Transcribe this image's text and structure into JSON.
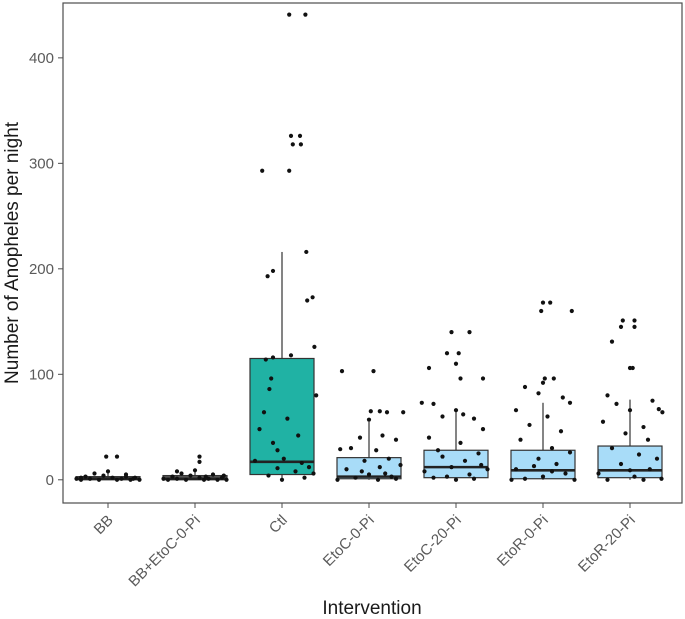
{
  "chart_data": {
    "type": "box",
    "title": "",
    "xlabel": "Intervention",
    "ylabel": "Number of Anopheles per night",
    "ylim": [
      -22,
      452
    ],
    "yticks": [
      0,
      100,
      200,
      300,
      400
    ],
    "grid": false,
    "legend": "none",
    "categories": [
      "BB",
      "BB+EtoC-0-Pi",
      "Ctl",
      "EtoC-0-Pi",
      "EtoC-20-Pi",
      "EtoR-0-Pi",
      "EtoR-20-Pi"
    ],
    "fill_colors": [
      "#595959",
      "#595959",
      "#20b2a4",
      "#a8dcf8",
      "#a8dcf8",
      "#a8dcf8",
      "#a8dcf8"
    ],
    "boxes": [
      {
        "q1": 0,
        "median": 1,
        "q3": 3,
        "whisker_low": 0,
        "whisker_high": 8
      },
      {
        "q1": 0,
        "median": 1,
        "q3": 4,
        "whisker_low": 0,
        "whisker_high": 10
      },
      {
        "q1": 5,
        "median": 17,
        "q3": 115,
        "whisker_low": 0,
        "whisker_high": 216
      },
      {
        "q1": 1,
        "median": 3,
        "q3": 21,
        "whisker_low": 0,
        "whisker_high": 55
      },
      {
        "q1": 2,
        "median": 12,
        "q3": 28,
        "whisker_low": 0,
        "whisker_high": 65
      },
      {
        "q1": 1,
        "median": 9,
        "q3": 28,
        "whisker_low": 0,
        "whisker_high": 73
      },
      {
        "q1": 2,
        "median": 9,
        "q3": 32,
        "whisker_low": 0,
        "whisker_high": 76
      }
    ],
    "points": [
      [
        [
          -0.3,
          0
        ],
        [
          -0.2,
          1
        ],
        [
          -0.1,
          0
        ],
        [
          0.05,
          2
        ],
        [
          0.15,
          1
        ],
        [
          0.25,
          0
        ],
        [
          -0.25,
          3
        ],
        [
          -0.05,
          4
        ],
        [
          0.1,
          0
        ],
        [
          0.3,
          2
        ],
        [
          -0.15,
          6
        ],
        [
          0.2,
          5
        ],
        [
          0.0,
          8
        ],
        [
          -0.3,
          2
        ],
        [
          0.28,
          1
        ],
        [
          -0.02,
          22
        ],
        [
          0.1,
          22
        ],
        [
          0.35,
          0
        ],
        [
          -0.35,
          1
        ],
        [
          0.2,
          3
        ]
      ],
      [
        [
          -0.3,
          0
        ],
        [
          -0.2,
          1
        ],
        [
          -0.1,
          0
        ],
        [
          0.05,
          2
        ],
        [
          0.15,
          1
        ],
        [
          0.25,
          0
        ],
        [
          -0.25,
          3
        ],
        [
          -0.05,
          4
        ],
        [
          0.1,
          0
        ],
        [
          0.3,
          2
        ],
        [
          -0.15,
          6
        ],
        [
          0.2,
          5
        ],
        [
          0.0,
          9
        ],
        [
          0.05,
          22
        ],
        [
          -0.2,
          8
        ],
        [
          0.32,
          4
        ],
        [
          0.05,
          17
        ],
        [
          -0.35,
          1
        ],
        [
          0.35,
          0
        ],
        [
          0.12,
          3
        ]
      ],
      [
        [
          0.08,
          441
        ],
        [
          0.26,
          441
        ],
        [
          0.1,
          326
        ],
        [
          0.2,
          326
        ],
        [
          0.12,
          318
        ],
        [
          0.21,
          318
        ],
        [
          -0.22,
          293
        ],
        [
          0.08,
          293
        ],
        [
          -0.1,
          198
        ],
        [
          -0.16,
          193
        ],
        [
          0.27,
          216
        ],
        [
          0.34,
          173
        ],
        [
          0.28,
          170
        ],
        [
          0.36,
          126
        ],
        [
          -0.18,
          114
        ],
        [
          -0.1,
          116
        ],
        [
          0.1,
          118
        ],
        [
          -0.12,
          96
        ],
        [
          -0.14,
          86
        ],
        [
          0.38,
          80
        ],
        [
          -0.2,
          64
        ],
        [
          0.06,
          58
        ],
        [
          0.18,
          42
        ],
        [
          -0.25,
          48
        ],
        [
          -0.05,
          28
        ],
        [
          0.02,
          20
        ],
        [
          -0.3,
          18
        ],
        [
          0.3,
          12
        ],
        [
          0.15,
          8
        ],
        [
          -0.15,
          4
        ],
        [
          0.0,
          0
        ],
        [
          0.25,
          2
        ],
        [
          -0.05,
          11
        ],
        [
          0.35,
          6
        ],
        [
          0.22,
          16
        ],
        [
          -0.1,
          35
        ]
      ],
      [
        [
          -0.3,
          103
        ],
        [
          0.05,
          103
        ],
        [
          0.02,
          65
        ],
        [
          0.12,
          65
        ],
        [
          0.2,
          64
        ],
        [
          0.38,
          64
        ],
        [
          0.0,
          57
        ],
        [
          -0.1,
          40
        ],
        [
          0.15,
          42
        ],
        [
          0.3,
          38
        ],
        [
          -0.2,
          30
        ],
        [
          -0.32,
          29
        ],
        [
          0.08,
          28
        ],
        [
          -0.05,
          18
        ],
        [
          0.22,
          20
        ],
        [
          0.35,
          14
        ],
        [
          -0.25,
          10
        ],
        [
          0.0,
          5
        ],
        [
          0.18,
          6
        ],
        [
          -0.15,
          2
        ],
        [
          0.1,
          0
        ],
        [
          0.3,
          1
        ],
        [
          -0.35,
          0
        ],
        [
          0.25,
          3
        ],
        [
          -0.08,
          8
        ],
        [
          0.12,
          12
        ]
      ],
      [
        [
          -0.05,
          140
        ],
        [
          0.15,
          140
        ],
        [
          -0.1,
          120
        ],
        [
          0.03,
          120
        ],
        [
          0.0,
          110
        ],
        [
          -0.3,
          106
        ],
        [
          0.05,
          96
        ],
        [
          0.3,
          96
        ],
        [
          -0.38,
          73
        ],
        [
          -0.25,
          72
        ],
        [
          0.0,
          66
        ],
        [
          0.08,
          62
        ],
        [
          -0.15,
          60
        ],
        [
          0.2,
          58
        ],
        [
          0.3,
          48
        ],
        [
          -0.3,
          40
        ],
        [
          0.05,
          35
        ],
        [
          -0.2,
          28
        ],
        [
          0.25,
          25
        ],
        [
          0.1,
          18
        ],
        [
          -0.05,
          12
        ],
        [
          0.35,
          10
        ],
        [
          -0.35,
          8
        ],
        [
          0.15,
          5
        ],
        [
          -0.1,
          3
        ],
        [
          0.2,
          1
        ],
        [
          0.0,
          0
        ],
        [
          -0.25,
          2
        ],
        [
          0.28,
          14
        ],
        [
          -0.15,
          22
        ]
      ],
      [
        [
          0.0,
          168
        ],
        [
          0.08,
          168
        ],
        [
          -0.02,
          160
        ],
        [
          0.32,
          160
        ],
        [
          0.02,
          96
        ],
        [
          0.12,
          96
        ],
        [
          0.0,
          92
        ],
        [
          -0.2,
          88
        ],
        [
          -0.05,
          82
        ],
        [
          0.22,
          78
        ],
        [
          0.3,
          73
        ],
        [
          -0.3,
          66
        ],
        [
          0.05,
          60
        ],
        [
          -0.15,
          52
        ],
        [
          0.2,
          46
        ],
        [
          -0.25,
          38
        ],
        [
          0.1,
          30
        ],
        [
          0.3,
          26
        ],
        [
          -0.05,
          20
        ],
        [
          0.15,
          15
        ],
        [
          -0.3,
          10
        ],
        [
          0.25,
          6
        ],
        [
          0.0,
          3
        ],
        [
          -0.2,
          1
        ],
        [
          0.35,
          0
        ],
        [
          -0.35,
          0
        ],
        [
          0.1,
          8
        ],
        [
          -0.1,
          13
        ]
      ],
      [
        [
          -0.08,
          151
        ],
        [
          0.05,
          151
        ],
        [
          -0.1,
          145
        ],
        [
          0.05,
          145
        ],
        [
          -0.2,
          131
        ],
        [
          0.0,
          106
        ],
        [
          0.03,
          106
        ],
        [
          0.25,
          75
        ],
        [
          0.32,
          67
        ],
        [
          0.36,
          64
        ],
        [
          -0.25,
          80
        ],
        [
          -0.15,
          72
        ],
        [
          0.0,
          66
        ],
        [
          -0.3,
          55
        ],
        [
          0.15,
          50
        ],
        [
          -0.05,
          44
        ],
        [
          0.2,
          38
        ],
        [
          -0.2,
          30
        ],
        [
          0.1,
          24
        ],
        [
          0.3,
          20
        ],
        [
          -0.1,
          15
        ],
        [
          0.22,
          10
        ],
        [
          -0.35,
          6
        ],
        [
          0.05,
          3
        ],
        [
          0.35,
          1
        ],
        [
          -0.25,
          0
        ],
        [
          0.15,
          0
        ],
        [
          0.0,
          9
        ]
      ]
    ]
  }
}
